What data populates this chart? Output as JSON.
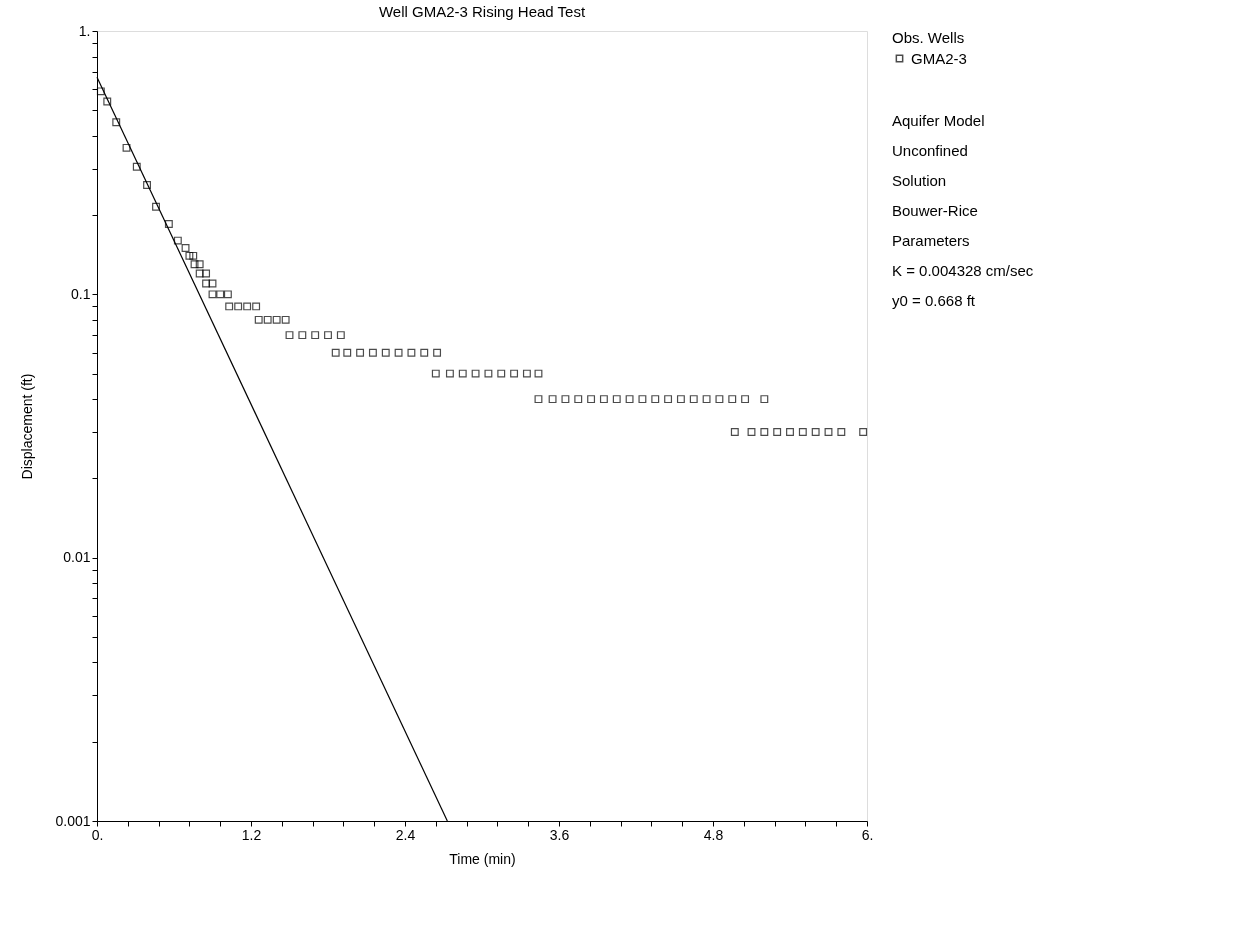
{
  "chart_data": {
    "type": "scatter",
    "title": "Well GMA2-3 Rising Head Test",
    "xlabel": "Time (min)",
    "ylabel": "Displacement (ft)",
    "legend_title": "Obs. Wells",
    "legend": "right",
    "log": "y",
    "grid": false,
    "xlim": [
      0,
      6
    ],
    "ylim": [
      0.001,
      1
    ],
    "xticks": [
      {
        "value": 0,
        "label": "0."
      },
      {
        "value": 0.24,
        "label": null
      },
      {
        "value": 0.48,
        "label": null
      },
      {
        "value": 0.72,
        "label": null
      },
      {
        "value": 0.96,
        "label": null
      },
      1.2,
      {
        "value": 1.44,
        "label": null
      },
      {
        "value": 1.68,
        "label": null
      },
      {
        "value": 1.92,
        "label": null
      },
      {
        "value": 2.16,
        "label": null
      },
      2.4,
      {
        "value": 2.64,
        "label": null
      },
      {
        "value": 2.88,
        "label": null
      },
      {
        "value": 3.12,
        "label": null
      },
      {
        "value": 3.36,
        "label": null
      },
      3.6,
      {
        "value": 3.84,
        "label": null
      },
      {
        "value": 4.08,
        "label": null
      },
      {
        "value": 4.32,
        "label": null
      },
      {
        "value": 4.56,
        "label": null
      },
      4.8,
      {
        "value": 5.04,
        "label": null
      },
      {
        "value": 5.28,
        "label": null
      },
      {
        "value": 5.52,
        "label": null
      },
      {
        "value": 5.76,
        "label": null
      },
      {
        "value": 6,
        "label": "6."
      }
    ],
    "yticks": [
      0.001,
      {
        "value": 0.002,
        "label": null
      },
      {
        "value": 0.003,
        "label": null
      },
      {
        "value": 0.004,
        "label": null
      },
      {
        "value": 0.005,
        "label": null
      },
      {
        "value": 0.006,
        "label": null
      },
      {
        "value": 0.007,
        "label": null
      },
      {
        "value": 0.008,
        "label": null
      },
      {
        "value": 0.009,
        "label": null
      },
      0.01,
      {
        "value": 0.02,
        "label": null
      },
      {
        "value": 0.03,
        "label": null
      },
      {
        "value": 0.04,
        "label": null
      },
      {
        "value": 0.05,
        "label": null
      },
      {
        "value": 0.06,
        "label": null
      },
      {
        "value": 0.07,
        "label": null
      },
      {
        "value": 0.08,
        "label": null
      },
      {
        "value": 0.09,
        "label": null
      },
      0.1,
      {
        "value": 0.2,
        "label": null
      },
      {
        "value": 0.3,
        "label": null
      },
      {
        "value": 0.4,
        "label": null
      },
      {
        "value": 0.5,
        "label": null
      },
      {
        "value": 0.6,
        "label": null
      },
      {
        "value": 0.7,
        "label": null
      },
      {
        "value": 0.8,
        "label": null
      },
      {
        "value": 0.9,
        "label": null
      },
      {
        "value": 1,
        "label": "1."
      }
    ],
    "series": [
      {
        "name": "GMA2-3",
        "marker": "square",
        "color": "#000000",
        "x": [
          0.03,
          0.08,
          0.15,
          0.23,
          0.31,
          0.39,
          0.46,
          0.56,
          0.63,
          0.69,
          0.72,
          0.75,
          0.76,
          0.8,
          0.8,
          0.85,
          0.85,
          0.9,
          0.9,
          0.96,
          1.02,
          1.03,
          1.1,
          1.17,
          1.24,
          1.26,
          1.33,
          1.4,
          1.47,
          1.5,
          1.6,
          1.7,
          1.8,
          1.9,
          1.86,
          1.95,
          2.05,
          2.15,
          2.25,
          2.35,
          2.45,
          2.55,
          2.65,
          2.64,
          2.75,
          2.85,
          2.95,
          3.05,
          3.15,
          3.25,
          3.35,
          3.44,
          3.44,
          3.55,
          3.65,
          3.75,
          3.85,
          3.95,
          4.05,
          4.15,
          4.25,
          4.35,
          4.45,
          4.55,
          4.65,
          4.75,
          4.85,
          4.95,
          5.05,
          5.2,
          4.97,
          5.1,
          5.2,
          5.3,
          5.4,
          5.5,
          5.6,
          5.7,
          5.8,
          5.97
        ],
        "values": [
          0.59,
          0.54,
          0.45,
          0.36,
          0.305,
          0.26,
          0.215,
          0.185,
          0.16,
          0.15,
          0.14,
          0.14,
          0.13,
          0.13,
          0.12,
          0.12,
          0.11,
          0.11,
          0.1,
          0.1,
          0.1,
          0.09,
          0.09,
          0.09,
          0.09,
          0.08,
          0.08,
          0.08,
          0.08,
          0.07,
          0.07,
          0.07,
          0.07,
          0.07,
          0.06,
          0.06,
          0.06,
          0.06,
          0.06,
          0.06,
          0.06,
          0.06,
          0.06,
          0.05,
          0.05,
          0.05,
          0.05,
          0.05,
          0.05,
          0.05,
          0.05,
          0.05,
          0.04,
          0.04,
          0.04,
          0.04,
          0.04,
          0.04,
          0.04,
          0.04,
          0.04,
          0.04,
          0.04,
          0.04,
          0.04,
          0.04,
          0.04,
          0.04,
          0.04,
          0.04,
          0.03,
          0.03,
          0.03,
          0.03,
          0.03,
          0.03,
          0.03,
          0.03,
          0.03,
          0.03
        ]
      },
      {
        "type": "line",
        "color": "#000000",
        "x": [
          0,
          2.73
        ],
        "values": [
          0.668,
          0.001
        ]
      }
    ],
    "annotations": [
      "Aquifer Model",
      "Unconfined",
      "Solution",
      "Bouwer-Rice",
      "Parameters",
      "K  = 0.004328 cm/sec",
      "y0 = 0.668 ft"
    ]
  }
}
